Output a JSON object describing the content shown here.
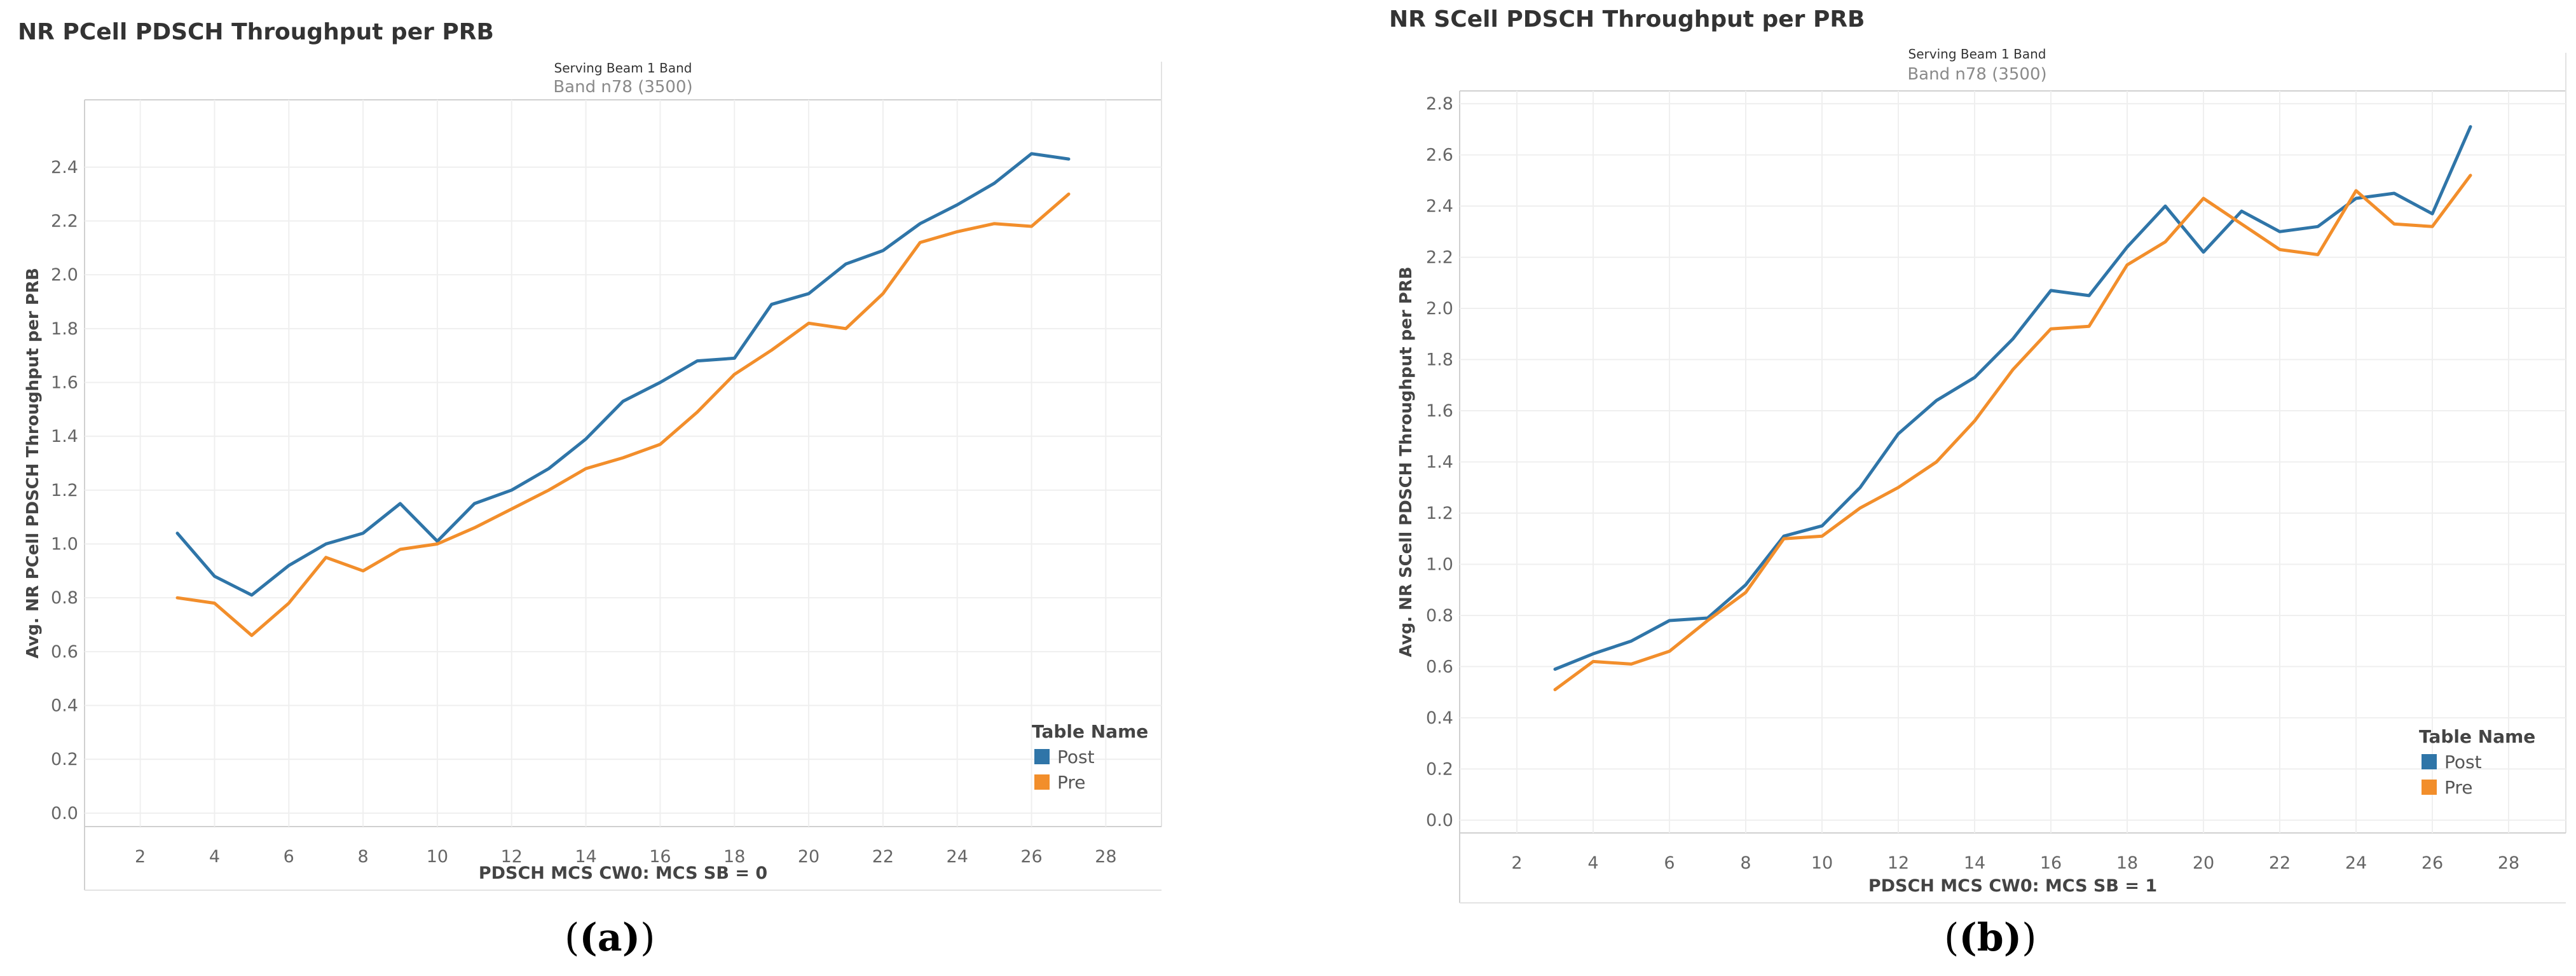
{
  "chart_data": [
    {
      "type": "line",
      "title": "NR PCell PDSCH Throughput per PRB",
      "header_label": "Serving Beam 1 Band",
      "header_value": "Band n78 (3500)",
      "xlabel": "PDSCH MCS CW0: MCS SB = 0",
      "ylabel": "Avg. NR PCell PDSCH Throughput per PRB",
      "xlim": [
        0.5,
        29.5
      ],
      "ylim": [
        -0.05,
        2.65
      ],
      "xticks": [
        2,
        4,
        6,
        8,
        10,
        12,
        14,
        16,
        18,
        20,
        22,
        24,
        26,
        28
      ],
      "xtick_labels": [
        "2",
        "4",
        "6",
        "8",
        "10",
        "12",
        "14",
        "16",
        "18",
        "20",
        "22",
        "24",
        "26",
        "28"
      ],
      "yticks": [
        0,
        0.2,
        0.4,
        0.6,
        0.8,
        1.0,
        1.2,
        1.4,
        1.6,
        1.8,
        2.0,
        2.2,
        2.4
      ],
      "ytick_labels": [
        "0.0",
        "0.2",
        "0.4",
        "0.6",
        "0.8",
        "1.0",
        "1.2",
        "1.4",
        "1.6",
        "1.8",
        "2.0",
        "2.2",
        "2.4"
      ],
      "legend_title": "Table Name",
      "legend_position": "bottom-right",
      "grid": true,
      "x": [
        3,
        4,
        5,
        6,
        7,
        8,
        9,
        10,
        11,
        12,
        13,
        14,
        15,
        16,
        17,
        18,
        19,
        20,
        21,
        22,
        23,
        24,
        25,
        26,
        27
      ],
      "series": [
        {
          "name": "Post",
          "color": "#2f75a8",
          "values": [
            1.04,
            0.88,
            0.81,
            0.92,
            1.0,
            1.04,
            1.15,
            1.01,
            1.15,
            1.2,
            1.28,
            1.39,
            1.53,
            1.6,
            1.68,
            1.69,
            1.89,
            1.93,
            2.04,
            2.09,
            2.19,
            2.26,
            2.34,
            2.45,
            2.43
          ]
        },
        {
          "name": "Pre",
          "color": "#f28e2b",
          "values": [
            0.8,
            0.78,
            0.66,
            0.78,
            0.95,
            0.9,
            0.98,
            1.0,
            1.06,
            1.13,
            1.2,
            1.28,
            1.32,
            1.37,
            1.49,
            1.63,
            1.72,
            1.82,
            1.8,
            1.93,
            2.12,
            2.16,
            2.19,
            2.18,
            2.3
          ]
        }
      ],
      "caption": "(a)"
    },
    {
      "type": "line",
      "title": "NR SCell PDSCH Throughput per PRB",
      "header_label": "Serving Beam 1 Band",
      "header_value": "Band n78 (3500)",
      "xlabel": "PDSCH MCS CW0: MCS SB = 1",
      "ylabel": "Avg. NR SCell PDSCH Throughput per PRB",
      "xlim": [
        0.5,
        29.5
      ],
      "ylim": [
        -0.05,
        2.85
      ],
      "xticks": [
        2,
        4,
        6,
        8,
        10,
        12,
        14,
        16,
        18,
        20,
        22,
        24,
        26,
        28
      ],
      "xtick_labels": [
        "2",
        "4",
        "6",
        "8",
        "10",
        "12",
        "14",
        "16",
        "18",
        "20",
        "22",
        "24",
        "26",
        "28"
      ],
      "yticks": [
        0,
        0.2,
        0.4,
        0.6,
        0.8,
        1.0,
        1.2,
        1.4,
        1.6,
        1.8,
        2.0,
        2.2,
        2.4,
        2.6,
        2.8
      ],
      "ytick_labels": [
        "0.0",
        "0.2",
        "0.4",
        "0.6",
        "0.8",
        "1.0",
        "1.2",
        "1.4",
        "1.6",
        "1.8",
        "2.0",
        "2.2",
        "2.4",
        "2.6",
        "2.8"
      ],
      "legend_title": "Table Name",
      "legend_position": "bottom-right",
      "grid": true,
      "x": [
        3,
        4,
        5,
        6,
        7,
        8,
        9,
        10,
        11,
        12,
        13,
        14,
        15,
        16,
        17,
        18,
        19,
        20,
        21,
        22,
        23,
        24,
        25,
        26,
        27
      ],
      "series": [
        {
          "name": "Post",
          "color": "#2f75a8",
          "values": [
            0.59,
            0.65,
            0.7,
            0.78,
            0.79,
            0.92,
            1.11,
            1.15,
            1.3,
            1.51,
            1.64,
            1.73,
            1.88,
            2.07,
            2.05,
            2.24,
            2.4,
            2.22,
            2.38,
            2.3,
            2.32,
            2.43,
            2.45,
            2.37,
            2.71
          ]
        },
        {
          "name": "Pre",
          "color": "#f28e2b",
          "values": [
            0.51,
            0.62,
            0.61,
            0.66,
            0.78,
            0.89,
            1.1,
            1.11,
            1.22,
            1.3,
            1.4,
            1.56,
            1.76,
            1.92,
            1.93,
            2.17,
            2.26,
            2.43,
            2.33,
            2.23,
            2.21,
            2.46,
            2.33,
            2.32,
            2.52
          ]
        }
      ],
      "caption": "(b)"
    }
  ]
}
